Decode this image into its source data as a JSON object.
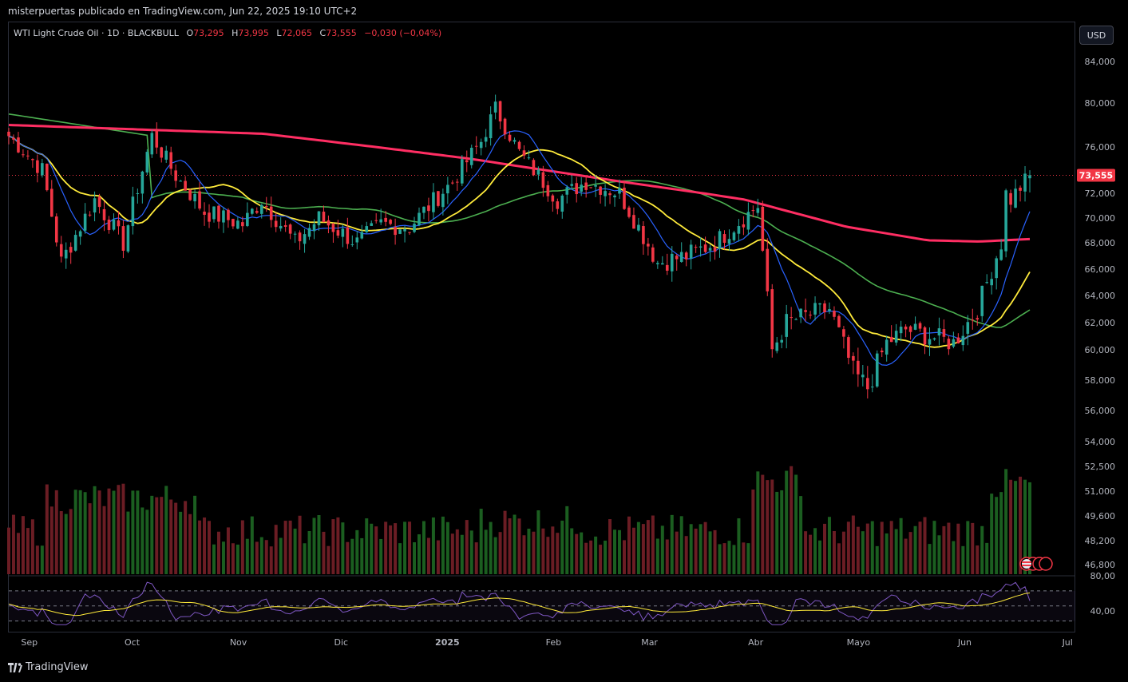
{
  "header": {
    "published": "misterpuertas publicado en TradingView.com, Jun 22, 2025 19:10 UTC+2"
  },
  "legend": {
    "symbol": "WTI Light Crude Oil · 1D · BLACKBULL",
    "open_key": "O",
    "open": "73,295",
    "high_key": "H",
    "high": "73,995",
    "low_key": "L",
    "low": "72,065",
    "close_key": "C",
    "close": "73,555",
    "change": "−0,030 (−0,04%)"
  },
  "currency_button": "USD",
  "footer": {
    "brand": "TradingView"
  },
  "colors": {
    "up": "#26a69a",
    "down": "#f23645",
    "vol_up": "#1b5e20",
    "vol_down": "#6b1d24",
    "ma200": "#ff2e63",
    "ma50": "#4caf50",
    "ma20": "#ffeb3b",
    "ma9": "#2962ff",
    "rsi": "#7e57c2",
    "rsi_ma": "#ffeb3b"
  },
  "chart_data": {
    "type": "candlestick",
    "price_ticks": [
      "84,000",
      "80,000",
      "76,000",
      "72,000",
      "70,000",
      "68,000",
      "66,000",
      "64,000",
      "62,000",
      "60,000",
      "58,000",
      "56,000",
      "54,000",
      "52,500",
      "51,000",
      "49,600",
      "48,200",
      "46,800"
    ],
    "last_price": "73,555",
    "rsi_ticks": [
      "80,00",
      "40,00"
    ],
    "months": [
      "Sep",
      "Oct",
      "Nov",
      "Dic",
      "2025",
      "Feb",
      "Mar",
      "Abr",
      "Mayo",
      "Jun",
      "Jul"
    ],
    "close_anchors": [
      [
        "2024-08-26",
        77.0
      ],
      [
        "2024-09-04",
        74.0
      ],
      [
        "2024-09-10",
        66.5
      ],
      [
        "2024-09-19",
        71.5
      ],
      [
        "2024-09-27",
        68.0
      ],
      [
        "2024-10-07",
        77.0
      ],
      [
        "2024-10-14",
        73.5
      ],
      [
        "2024-10-22",
        70.5
      ],
      [
        "2024-11-01",
        69.5
      ],
      [
        "2024-11-07",
        71.5
      ],
      [
        "2024-11-18",
        68.0
      ],
      [
        "2024-11-25",
        70.0
      ],
      [
        "2024-12-05",
        68.0
      ],
      [
        "2024-12-12",
        69.5
      ],
      [
        "2024-12-20",
        69.3
      ],
      [
        "2025-01-02",
        73.0
      ],
      [
        "2025-01-10",
        76.5
      ],
      [
        "2025-01-15",
        79.5
      ],
      [
        "2025-01-22",
        75.5
      ],
      [
        "2025-02-03",
        71.5
      ],
      [
        "2025-02-11",
        73.0
      ],
      [
        "2025-02-20",
        72.0
      ],
      [
        "2025-03-04",
        66.5
      ],
      [
        "2025-03-12",
        67.0
      ],
      [
        "2025-03-20",
        68.0
      ],
      [
        "2025-04-02",
        71.0
      ],
      [
        "2025-04-07",
        60.0
      ],
      [
        "2025-04-10",
        62.0
      ],
      [
        "2025-04-16",
        62.5
      ],
      [
        "2025-04-23",
        63.0
      ],
      [
        "2025-04-30",
        58.5
      ],
      [
        "2025-05-05",
        57.5
      ],
      [
        "2025-05-09",
        60.5
      ],
      [
        "2025-05-15",
        61.5
      ],
      [
        "2025-05-22",
        61.0
      ],
      [
        "2025-05-29",
        60.5
      ],
      [
        "2025-06-05",
        63.0
      ],
      [
        "2025-06-12",
        68.0
      ],
      [
        "2025-06-13",
        72.0
      ],
      [
        "2025-06-16",
        71.5
      ],
      [
        "2025-06-20",
        73.555
      ]
    ],
    "ma200_anchors": [
      [
        0,
        78.0
      ],
      [
        0.25,
        77.2
      ],
      [
        0.45,
        75.0
      ],
      [
        0.6,
        73.0
      ],
      [
        0.72,
        71.5
      ],
      [
        0.82,
        69.3
      ],
      [
        0.9,
        68.2
      ],
      [
        0.95,
        68.1
      ],
      [
        1,
        68.3
      ]
    ],
    "rsi_range": [
      20,
      90
    ]
  }
}
